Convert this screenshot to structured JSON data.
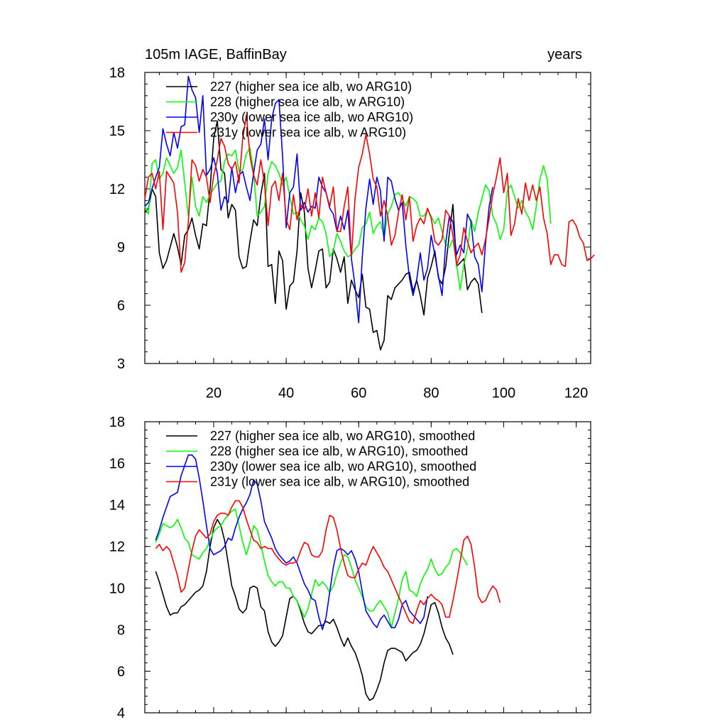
{
  "figure": {
    "title_left": "105m IAGE, BaffinBay",
    "title_right": "years"
  },
  "chart_data": [
    {
      "type": "line",
      "title": "105m IAGE, BaffinBay",
      "units_label": "years",
      "xlim": [
        1,
        124
      ],
      "ylim": [
        3,
        18
      ],
      "xticks": [
        20,
        40,
        60,
        80,
        100,
        120
      ],
      "yticks": [
        3,
        6,
        9,
        12,
        15,
        18
      ],
      "grid": false,
      "legend_position": "top-left",
      "series": [
        {
          "name": "227 (higher sea ice alb, wo ARG10)",
          "color": "#000000",
          "x_start": 1,
          "values": [
            10.8,
            11.0,
            12.0,
            11.6,
            8.7,
            7.9,
            8.3,
            9.0,
            9.7,
            9.0,
            8.1,
            9.6,
            9.9,
            10.5,
            9.6,
            8.9,
            10.2,
            10.1,
            12.0,
            14.6,
            15.5,
            13.0,
            12.8,
            10.5,
            11.2,
            10.9,
            8.5,
            7.9,
            8.0,
            9.3,
            10.4,
            10.1,
            11.7,
            12.8,
            8.0,
            8.1,
            6.1,
            8.8,
            8.3,
            5.8,
            7.0,
            7.2,
            8.8,
            11.8,
            10.8,
            7.9,
            6.9,
            7.8,
            8.8,
            8.9,
            6.9,
            7.2,
            8.9,
            8.4,
            7.7,
            8.5,
            6.1,
            7.3,
            6.8,
            6.4,
            7.6,
            5.9,
            5.8,
            4.6,
            4.7,
            3.7,
            4.2,
            6.5,
            6.3,
            6.9,
            7.1,
            7.3,
            7.6,
            7.7,
            6.7,
            7.3,
            6.5,
            5.5,
            7.4,
            8.0,
            8.8,
            7.4,
            7.1,
            8.0,
            9.7,
            11.2,
            8.0,
            8.2,
            8.4,
            6.8,
            7.2,
            7.4,
            7.1,
            5.6
          ]
        },
        {
          "name": "228 (higher sea ice alb, w ARG10)",
          "color": "#00ff00",
          "x_start": 1,
          "values": [
            11.1,
            10.7,
            13.3,
            13.5,
            12.5,
            12.8,
            13.6,
            13.2,
            12.8,
            13.1,
            14.0,
            12.3,
            10.6,
            12.6,
            11.1,
            10.6,
            11.6,
            11.3,
            11.7,
            12.0,
            12.3,
            12.4,
            13.4,
            13.8,
            13.7,
            14.0,
            12.9,
            13.0,
            13.8,
            14.1,
            12.9,
            10.6,
            10.8,
            11.1,
            12.8,
            13.4,
            13.2,
            12.8,
            12.2,
            12.6,
            11.6,
            10.7,
            10.8,
            10.4,
            10.1,
            9.4,
            10.1,
            9.9,
            10.5,
            10.3,
            9.7,
            8.5,
            8.8,
            9.7,
            9.3,
            8.8,
            8.5,
            8.6,
            8.9,
            9.1,
            10.0,
            10.2,
            10.8,
            9.7,
            10.1,
            10.3,
            9.5,
            10.7,
            11.1,
            11.7,
            11.8,
            11.5,
            11.1,
            11.6,
            11.5,
            11.3,
            10.6,
            10.6,
            10.9,
            10.6,
            10.2,
            10.5,
            9.8,
            9.1,
            9.0,
            9.4,
            8.1,
            6.8,
            8.1,
            8.9,
            10.4,
            9.8,
            10.8,
            11.5,
            12.2,
            11.9,
            10.6,
            10.2,
            9.4,
            9.9,
            11.9,
            12.2,
            11.6,
            11.0,
            11.4,
            10.8,
            10.5,
            9.9,
            11.1,
            12.5,
            13.2,
            12.5,
            10.2
          ]
        },
        {
          "name": "230y (lower sea ice alb, wo ARG10)",
          "color": "#0000ff",
          "x_start": 1,
          "values": [
            11.1,
            11.3,
            12.0,
            12.6,
            13.1,
            15.1,
            14.3,
            13.7,
            14.9,
            14.1,
            15.2,
            15.3,
            17.8,
            17.1,
            16.7,
            14.9,
            16.8,
            12.7,
            13.0,
            13.6,
            12.8,
            10.9,
            11.6,
            11.3,
            13.1,
            11.8,
            12.7,
            12.9,
            12.1,
            11.4,
            12.8,
            14.0,
            14.3,
            15.6,
            13.5,
            15.6,
            16.4,
            16.6,
            13.7,
            10.0,
            11.8,
            12.1,
            13.8,
            10.9,
            11.3,
            10.8,
            11.1,
            11.0,
            12.6,
            12.1,
            11.8,
            11.0,
            10.7,
            9.8,
            10.6,
            9.9,
            10.9,
            8.4,
            7.0,
            5.1,
            8.5,
            11.0,
            12.5,
            11.2,
            12.6,
            11.9,
            9.3,
            12.6,
            12.4,
            11.5,
            10.9,
            11.3,
            9.1,
            7.4,
            6.5,
            7.3,
            8.7,
            7.3,
            7.9,
            9.6,
            8.6,
            7.5,
            6.5,
            9.2,
            10.6,
            10.3,
            8.6,
            9.1,
            8.7,
            10.7,
            10.3,
            8.5,
            8.1,
            6.7,
            9.2,
            11.1,
            12.1
          ]
        },
        {
          "name": "231y (lower sea ice alb, w ARG10)",
          "color": "#ff0000",
          "x_start": 1,
          "values": [
            11.5,
            12.6,
            12.8,
            12.0,
            12.9,
            9.9,
            12.9,
            12.6,
            12.3,
            10.8,
            7.7,
            8.2,
            10.3,
            13.5,
            13.2,
            12.4,
            13.0,
            12.6,
            11.3,
            12.7,
            13.5,
            14.6,
            14.2,
            13.3,
            13.0,
            13.4,
            12.3,
            14.6,
            15.8,
            13.7,
            12.7,
            12.2,
            13.5,
            12.3,
            10.1,
            12.1,
            12.4,
            11.4,
            12.8,
            10.4,
            9.9,
            11.7,
            10.4,
            11.2,
            10.9,
            12.0,
            10.6,
            11.8,
            10.5,
            12.6,
            11.8,
            11.1,
            12.1,
            9.8,
            9.8,
            11.1,
            12.1,
            8.5,
            11.5,
            13.1,
            13.8,
            14.8,
            13.8,
            12.5,
            12.1,
            10.6,
            11.4,
            10.6,
            9.1,
            9.6,
            10.8,
            11.7,
            10.4,
            11.6,
            9.3,
            10.1,
            10.5,
            10.2,
            11.0,
            10.5,
            9.3,
            9.1,
            9.4,
            10.9,
            10.6,
            9.6,
            8.1,
            8.6,
            10.0,
            9.3,
            8.7,
            9.0,
            9.2,
            8.6,
            9.4,
            10.5,
            11.7,
            12.6,
            13.6,
            11.8,
            12.8,
            9.6,
            10.2,
            11.5,
            10.7,
            12.3,
            11.4,
            12.2,
            11.4,
            12.1,
            10.5,
            9.7,
            8.1,
            8.6,
            8.6,
            8.1,
            8.0,
            10.3,
            10.4,
            10.1,
            9.5,
            9.2,
            8.3,
            8.4,
            8.6
          ]
        }
      ]
    },
    {
      "type": "line",
      "title": "",
      "xlim": [
        1,
        124
      ],
      "ylim": [
        4,
        18
      ],
      "xticks": [
        20,
        40,
        60,
        80,
        100,
        120
      ],
      "xtick_labels_shown": false,
      "yticks": [
        4,
        6,
        8,
        10,
        12,
        14,
        16,
        18
      ],
      "grid": false,
      "legend_position": "top-left",
      "series": [
        {
          "name": "227 (higher sea ice alb, wo ARG10), smoothed",
          "color": "#000000",
          "x_start": 4,
          "values": [
            10.8,
            10.3,
            9.7,
            9.1,
            8.7,
            8.8,
            8.8,
            9.1,
            9.2,
            9.4,
            9.6,
            9.8,
            9.9,
            10.1,
            10.8,
            12.0,
            12.9,
            13.3,
            13.0,
            12.3,
            11.2,
            10.1,
            9.6,
            9.0,
            8.8,
            9.0,
            10.0,
            10.1,
            10.0,
            9.1,
            8.9,
            7.9,
            7.4,
            7.2,
            7.4,
            7.7,
            8.6,
            9.5,
            9.6,
            9.4,
            8.9,
            8.3,
            7.9,
            7.8,
            8.0,
            8.2,
            8.2,
            8.4,
            8.3,
            8.5,
            8.1,
            7.6,
            7.2,
            7.6,
            7.2,
            6.9,
            6.4,
            5.8,
            4.9,
            4.6,
            4.7,
            5.1,
            5.6,
            6.4,
            7.0,
            7.1,
            7.1,
            7.0,
            6.9,
            6.5,
            6.7,
            6.9,
            7.0,
            7.3,
            7.8,
            8.5,
            9.2,
            9.3,
            8.8,
            8.1,
            7.6,
            7.3,
            6.8
          ]
        },
        {
          "name": "228 (higher sea ice alb, w ARG10), smoothed",
          "color": "#00ff00",
          "x_start": 4,
          "values": [
            12.2,
            12.6,
            13.1,
            13.0,
            12.9,
            13.0,
            13.3,
            12.9,
            12.4,
            12.2,
            11.6,
            11.5,
            11.4,
            11.7,
            11.9,
            12.3,
            12.7,
            12.9,
            13.0,
            13.3,
            13.5,
            13.7,
            13.8,
            13.0,
            12.2,
            11.6,
            12.2,
            13.0,
            12.8,
            12.1,
            11.3,
            10.6,
            10.3,
            10.1,
            10.3,
            10.3,
            10.0,
            10.0,
            9.6,
            9.4,
            9.0,
            8.6,
            9.0,
            9.7,
            10.4,
            10.1,
            10.3,
            10.1,
            9.8,
            10.1,
            10.7,
            11.2,
            11.6,
            11.5,
            11.0,
            10.4,
            10.0,
            9.6,
            9.1,
            8.9,
            8.9,
            9.2,
            9.4,
            9.1,
            8.8,
            8.1,
            8.8,
            9.5,
            10.4,
            10.8,
            9.9,
            9.8,
            9.6,
            10.2,
            10.6,
            10.9,
            11.4,
            10.9,
            10.6,
            10.7,
            11.0,
            11.2,
            11.8,
            11.9,
            11.7,
            11.4,
            11.1
          ]
        },
        {
          "name": "230y (lower sea ice alb, wo ARG10), smoothed",
          "color": "#0000ff",
          "x_start": 4,
          "values": [
            12.3,
            12.8,
            13.4,
            13.9,
            14.4,
            14.5,
            14.6,
            15.4,
            15.9,
            16.4,
            16.4,
            16.2,
            15.3,
            14.2,
            13.0,
            11.9,
            11.6,
            11.7,
            11.8,
            12.0,
            12.4,
            12.3,
            12.9,
            13.4,
            13.8,
            14.1,
            14.5,
            15.2,
            15.0,
            14.2,
            13.2,
            12.8,
            12.4,
            11.9,
            11.6,
            11.4,
            11.2,
            11.3,
            11.5,
            11.2,
            10.7,
            10.2,
            9.9,
            9.5,
            9.4,
            8.6,
            8.0,
            8.6,
            9.8,
            11.0,
            11.8,
            11.9,
            11.8,
            11.6,
            11.8,
            11.4,
            10.8,
            9.8,
            8.9,
            8.6,
            8.3,
            8.1,
            8.5,
            8.7,
            8.4,
            8.1,
            8.1,
            8.5,
            9.2,
            9.4,
            8.9,
            8.7,
            8.5,
            8.3,
            8.6,
            9.6
          ]
        },
        {
          "name": "231y (lower sea ice alb, w ARG10), smoothed",
          "color": "#ff0000",
          "x_start": 4,
          "values": [
            11.9,
            12.1,
            11.8,
            12.0,
            11.8,
            11.2,
            10.6,
            9.8,
            10.0,
            10.9,
            11.8,
            12.5,
            12.8,
            12.6,
            12.4,
            12.6,
            13.2,
            13.5,
            13.6,
            13.6,
            13.5,
            13.9,
            14.2,
            14.2,
            13.9,
            13.3,
            12.8,
            12.3,
            12.2,
            11.9,
            12.0,
            11.9,
            11.9,
            11.6,
            11.4,
            11.2,
            11.1,
            11.2,
            11.2,
            11.3,
            11.8,
            12.2,
            12.1,
            11.6,
            11.5,
            11.5,
            11.8,
            12.8,
            13.5,
            13.4,
            12.8,
            11.9,
            11.2,
            10.6,
            10.5,
            10.5,
            10.9,
            11.2,
            11.1,
            11.6,
            12.0,
            11.7,
            11.4,
            11.0,
            10.8,
            10.4,
            10.0,
            9.6,
            9.2,
            8.8,
            8.4,
            8.3,
            8.9,
            9.4,
            9.2,
            9.5,
            9.7,
            9.5,
            9.4,
            9.2,
            8.6,
            8.6,
            9.4,
            10.3,
            11.3,
            12.3,
            12.5,
            12.1,
            11.0,
            9.6,
            9.3,
            9.4,
            9.8,
            10.1,
            9.9,
            9.3
          ]
        }
      ]
    }
  ]
}
